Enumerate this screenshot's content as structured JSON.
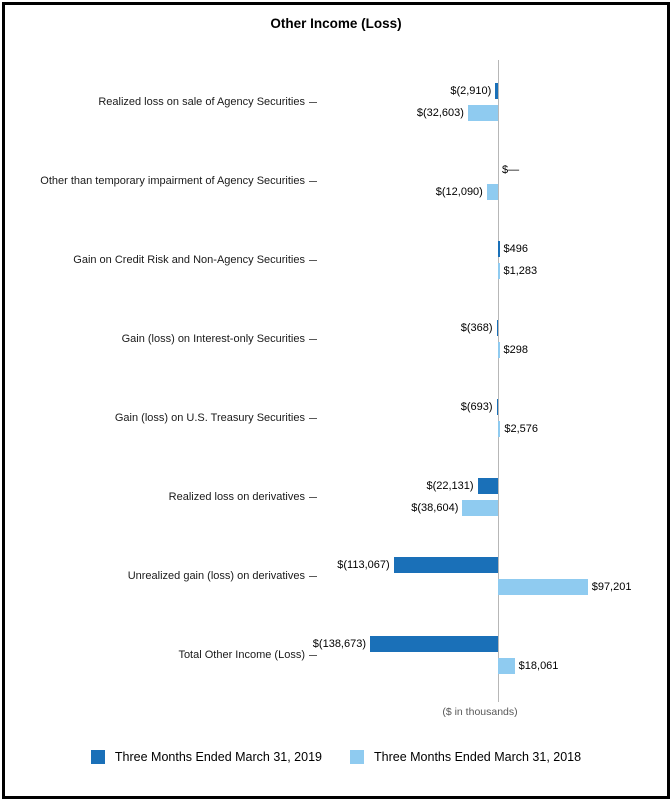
{
  "title": "Other Income (Loss)",
  "axis_note": "($ in thousands)",
  "legend": [
    {
      "label": "Three Months Ended March 31, 2019",
      "color": "#1a70b8"
    },
    {
      "label": "Three Months Ended March 31, 2018",
      "color": "#8fcbf0"
    }
  ],
  "chart_data": {
    "type": "bar",
    "orientation": "horizontal",
    "units": "$ in thousands",
    "zero_baseline": true,
    "gridlines": false,
    "legend_position": "bottom",
    "xlim_estimate": [
      -160000,
      160000
    ],
    "categories": [
      "Realized loss on sale of Agency Securities",
      "Other than temporary impairment of Agency Securities",
      "Gain on Credit Risk and Non-Agency Securities",
      "Gain (loss) on Interest-only Securities",
      "Gain (loss) on U.S. Treasury Securities",
      "Realized loss on derivatives",
      "Unrealized gain (loss) on derivatives",
      "Total Other Income (Loss)"
    ],
    "series": [
      {
        "name": "Three Months Ended March 31, 2019",
        "color": "#1a70b8",
        "values": [
          -2910,
          0,
          496,
          -368,
          -693,
          -22131,
          -113067,
          -138673
        ],
        "value_labels": [
          "$(2,910)",
          "$—",
          "$496",
          "$(368)",
          "$(693)",
          "$(22,131)",
          "$(113,067)",
          "$(138,673)"
        ]
      },
      {
        "name": "Three Months Ended March 31, 2018",
        "color": "#8fcbf0",
        "values": [
          -32603,
          -12090,
          1283,
          298,
          2576,
          -38604,
          97201,
          18061
        ],
        "value_labels": [
          "$(32,603)",
          "$(12,090)",
          "$1,283",
          "$298",
          "$2,576",
          "$(38,604)",
          "$97,201",
          "$18,061"
        ]
      }
    ]
  }
}
